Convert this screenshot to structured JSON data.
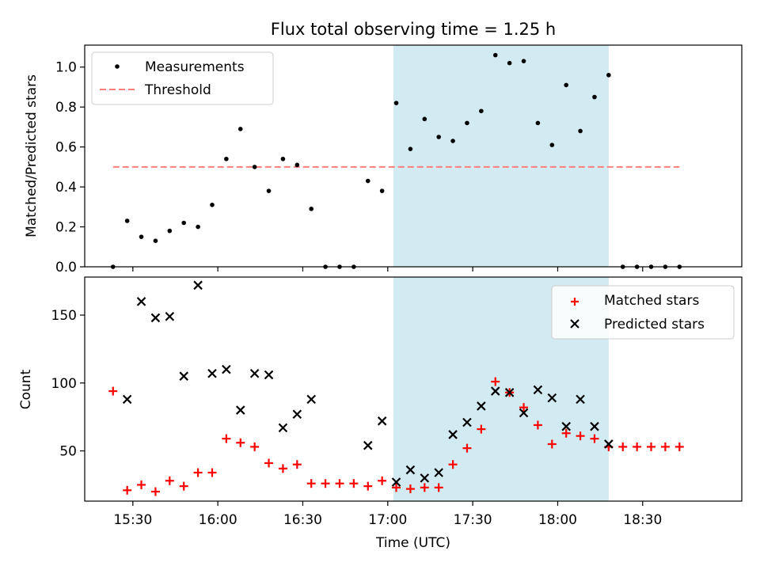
{
  "chart_data": [
    {
      "type": "scatter",
      "title": "Flux total observing time = 1.25 h",
      "ylabel": "Matched/Predicted stars",
      "ylim": [
        0,
        1.11
      ],
      "yticks": [
        0.0,
        0.2,
        0.4,
        0.6,
        0.8,
        1.0
      ],
      "ytick_labels": [
        "0.0",
        "0.2",
        "0.4",
        "0.6",
        "0.8",
        "1.0"
      ],
      "xlim": [
        "15:13",
        "19:05"
      ],
      "shared_x_axis": true,
      "shaded_interval": {
        "start": "17:02",
        "end": "18:18",
        "color": "#add8e6"
      },
      "legend": {
        "position": "upper-left",
        "entries": [
          "Measurements",
          "Threshold"
        ]
      },
      "series": [
        {
          "name": "Measurements",
          "marker": "dot",
          "color": "#000000",
          "x": [
            "15:23",
            "15:28",
            "15:33",
            "15:38",
            "15:43",
            "15:48",
            "15:53",
            "15:58",
            "16:03",
            "16:08",
            "16:13",
            "16:18",
            "16:23",
            "16:28",
            "16:33",
            "16:38",
            "16:43",
            "16:48",
            "16:53",
            "16:58",
            "17:03",
            "17:08",
            "17:13",
            "17:18",
            "17:23",
            "17:28",
            "17:33",
            "17:38",
            "17:43",
            "17:48",
            "17:53",
            "17:58",
            "18:03",
            "18:08",
            "18:13",
            "18:18",
            "18:23",
            "18:28",
            "18:33",
            "18:38",
            "18:43"
          ],
          "y": [
            0.0,
            0.23,
            0.15,
            0.13,
            0.18,
            0.22,
            0.2,
            0.31,
            0.54,
            0.69,
            0.5,
            0.38,
            0.54,
            0.51,
            0.29,
            0.0,
            0.0,
            0.0,
            0.43,
            0.38,
            0.82,
            0.59,
            0.74,
            0.65,
            0.63,
            0.72,
            0.78,
            1.06,
            1.02,
            1.03,
            0.72,
            0.61,
            0.91,
            0.68,
            0.85,
            0.96,
            0.0,
            0.0,
            0.0,
            0.0,
            0.0
          ]
        },
        {
          "name": "Threshold",
          "style": "dashed",
          "color": "#ff7f7f",
          "x": [
            "15:23",
            "18:43"
          ],
          "y": [
            0.5,
            0.5
          ]
        }
      ]
    },
    {
      "type": "scatter",
      "ylabel": "Count",
      "xlabel": "Time (UTC)",
      "ylim": [
        13,
        178
      ],
      "yticks": [
        50,
        100,
        150
      ],
      "ytick_labels": [
        "50",
        "100",
        "150"
      ],
      "xticks": [
        "15:30",
        "16:00",
        "16:30",
        "17:00",
        "17:30",
        "18:00",
        "18:30"
      ],
      "xlim": [
        "15:13",
        "19:05"
      ],
      "shaded_interval": {
        "start": "17:02",
        "end": "18:18",
        "color": "#add8e6"
      },
      "legend": {
        "position": "upper-right",
        "entries": [
          "Matched stars",
          "Predicted stars"
        ]
      },
      "series": [
        {
          "name": "Matched stars",
          "marker": "plus",
          "color": "#ff0000",
          "x": [
            "15:23",
            "15:28",
            "15:33",
            "15:38",
            "15:43",
            "15:48",
            "15:53",
            "15:58",
            "16:03",
            "16:08",
            "16:13",
            "16:18",
            "16:23",
            "16:28",
            "16:33",
            "16:38",
            "16:43",
            "16:48",
            "16:53",
            "16:58",
            "17:03",
            "17:08",
            "17:13",
            "17:18",
            "17:23",
            "17:28",
            "17:33",
            "17:38",
            "17:43",
            "17:48",
            "17:53",
            "17:58",
            "18:03",
            "18:08",
            "18:13",
            "18:18",
            "18:23",
            "18:28",
            "18:33",
            "18:38",
            "18:43"
          ],
          "y": [
            94,
            21,
            25,
            20,
            28,
            24,
            34,
            34,
            59,
            56,
            53,
            41,
            37,
            40,
            26,
            26,
            26,
            26,
            24,
            28,
            23,
            22,
            23,
            23,
            40,
            52,
            66,
            101,
            93,
            82,
            69,
            55,
            63,
            61,
            59,
            53,
            53,
            53,
            53,
            53,
            53
          ]
        },
        {
          "name": "Predicted stars",
          "marker": "x",
          "color": "#000000",
          "x": [
            "15:28",
            "15:33",
            "15:38",
            "15:43",
            "15:48",
            "15:53",
            "15:58",
            "16:03",
            "16:08",
            "16:13",
            "16:18",
            "16:23",
            "16:28",
            "16:33",
            "16:53",
            "16:58",
            "17:03",
            "17:08",
            "17:13",
            "17:18",
            "17:23",
            "17:28",
            "17:33",
            "17:38",
            "17:43",
            "17:48",
            "17:53",
            "17:58",
            "18:03",
            "18:08",
            "18:13",
            "18:18"
          ],
          "y": [
            88,
            160,
            148,
            149,
            105,
            172,
            107,
            110,
            80,
            107,
            106,
            67,
            77,
            88,
            54,
            72,
            27,
            36,
            30,
            34,
            62,
            71,
            83,
            94,
            93,
            78,
            95,
            89,
            68,
            88,
            68,
            55
          ]
        }
      ]
    }
  ]
}
